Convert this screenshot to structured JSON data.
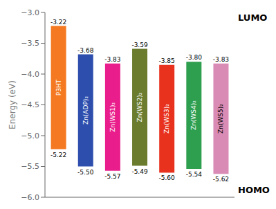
{
  "chart_data": {
    "type": "range_bar",
    "categories": [
      "P3HT",
      "Zn(ADP)₂",
      "Zn(WS1)₂",
      "Zn(WS2)₂",
      "Zn(WS3)₂",
      "Zn(WS4)₂",
      "Zn(WS5)₂"
    ],
    "series": [
      {
        "name": "LUMO",
        "values": [
          -3.22,
          -3.68,
          -3.83,
          -3.59,
          -3.85,
          -3.8,
          -3.83
        ],
        "value_labels": [
          "-3.22",
          "-3.68",
          "-3.83",
          "-3.59",
          "-3.85",
          "-3.80",
          "-3.83"
        ]
      },
      {
        "name": "HOMO",
        "values": [
          -5.22,
          -5.5,
          -5.57,
          -5.49,
          -5.6,
          -5.54,
          -5.62
        ],
        "value_labels": [
          "-5.22",
          "-5.50",
          "-5.57",
          "-5.49",
          "-5.60",
          "-5.54",
          "-5.62"
        ]
      }
    ],
    "colors": [
      "#F47920",
      "#2E4EAE",
      "#E91E8C",
      "#6B7C2E",
      "#E8321E",
      "#2E9E4F",
      "#D98BB5"
    ],
    "ylabel": "Energy (eV)",
    "ylim": [
      -6.0,
      -3.0
    ],
    "yticks": [
      {
        "value": -6.0,
        "label": "−6.0"
      },
      {
        "value": -5.5,
        "label": "−5.5"
      },
      {
        "value": -5.0,
        "label": "−5.0"
      },
      {
        "value": -4.5,
        "label": "−4.5"
      },
      {
        "value": -4.0,
        "label": "−4.0"
      },
      {
        "value": -3.5,
        "label": "−3.5"
      },
      {
        "value": -3.0,
        "label": "−3.0"
      }
    ],
    "data_labels": true,
    "tick_labels": "y",
    "grid": false
  }
}
